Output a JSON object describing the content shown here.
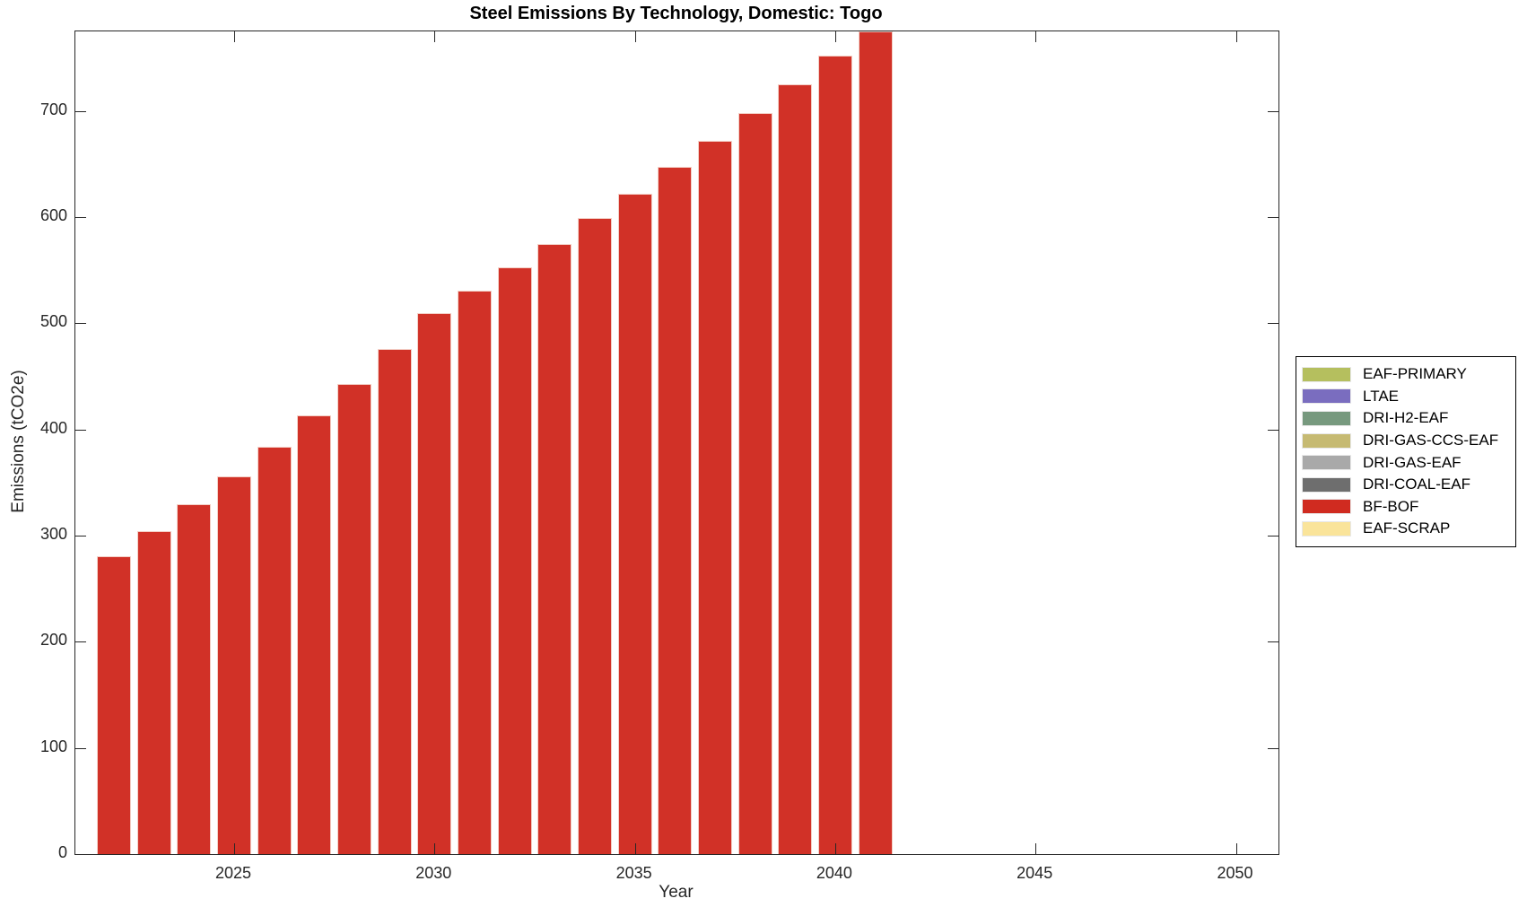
{
  "chart_data": {
    "type": "bar",
    "stacked": true,
    "title": "Steel Emissions By Technology, Domestic: Togo",
    "xlabel": "Year",
    "ylabel": "Emissions (tCO2e)",
    "xlim": [
      2021,
      2051
    ],
    "ylim": [
      0,
      775
    ],
    "x_ticks": [
      2025,
      2030,
      2035,
      2040,
      2045,
      2050
    ],
    "y_ticks": [
      0,
      100,
      200,
      300,
      400,
      500,
      600,
      700
    ],
    "grid": false,
    "legend_position": "right-outside",
    "categories": [
      2022,
      2023,
      2024,
      2025,
      2026,
      2027,
      2028,
      2029,
      2030,
      2031,
      2032,
      2033,
      2034,
      2035,
      2036,
      2037,
      2038,
      2039,
      2040,
      2041
    ],
    "series": [
      {
        "name": "BF-BOF",
        "color": "#d13127",
        "values": [
          281,
          304,
          330,
          356,
          384,
          413,
          443,
          476,
          510,
          531,
          553,
          575,
          599,
          622,
          647,
          672,
          698,
          725,
          752,
          779
        ]
      }
    ],
    "legend": [
      {
        "label": "EAF-PRIMARY",
        "color": "#b5bf5e"
      },
      {
        "label": "LTAE",
        "color": "#7a6dbf"
      },
      {
        "label": "DRI-H2-EAF",
        "color": "#77997e"
      },
      {
        "label": "DRI-GAS-CCS-EAF",
        "color": "#c6ba72"
      },
      {
        "label": "DRI-GAS-EAF",
        "color": "#a9a9a9"
      },
      {
        "label": "DRI-COAL-EAF",
        "color": "#6e6e6e"
      },
      {
        "label": "BF-BOF",
        "color": "#d02b20"
      },
      {
        "label": "EAF-SCRAP",
        "color": "#fae49a"
      }
    ]
  }
}
